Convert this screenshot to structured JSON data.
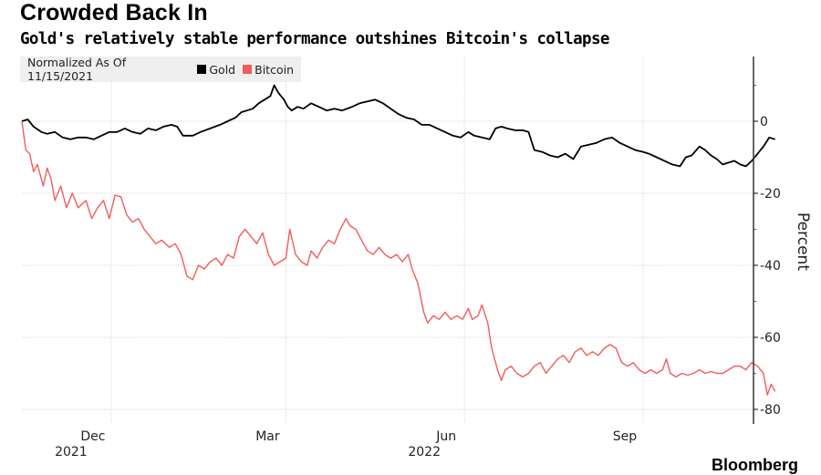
{
  "header": {
    "title": "Crowded Back In",
    "subtitle": "Gold's relatively stable performance outshines Bitcoin's collapse"
  },
  "legend": {
    "note": "Normalized As Of 11/15/2021",
    "items": [
      {
        "label": "Gold",
        "color": "#000000"
      },
      {
        "label": "Bitcoin",
        "color": "#f25c5c"
      }
    ]
  },
  "footer": {
    "brand": "Bloomberg"
  },
  "chart_data": {
    "type": "line",
    "title": "Crowded Back In",
    "subtitle": "Gold's relatively stable performance outshines Bitcoin's collapse",
    "xlabel": "",
    "ylabel": "Percent",
    "ylim": [
      -83,
      18
    ],
    "y_ticks": [
      0,
      -20,
      -40,
      -60,
      -80
    ],
    "y_minor_ticks": [
      10,
      -10,
      -30,
      -50,
      -70
    ],
    "x_ticks": [
      {
        "date": "2021-12-01",
        "label": "Dec",
        "sublabel": "2021"
      },
      {
        "date": "2022-03-01",
        "label": "Mar",
        "sublabel": ""
      },
      {
        "date": "2022-06-01",
        "label": "Jun",
        "sublabel": "2022"
      },
      {
        "date": "2022-09-01",
        "label": "Sep",
        "sublabel": ""
      }
    ],
    "xlim": [
      "2021-10-16",
      "2022-10-26"
    ],
    "grid": true,
    "legend": "top-left",
    "y_axis_side": "right",
    "series": [
      {
        "name": "Gold",
        "color": "#000000",
        "points": [
          [
            "2021-10-16",
            0
          ],
          [
            "2021-10-19",
            0.5
          ],
          [
            "2021-10-22",
            -1.5
          ],
          [
            "2021-10-26",
            -3
          ],
          [
            "2021-10-29",
            -3.5
          ],
          [
            "2021-11-02",
            -3
          ],
          [
            "2021-11-06",
            -4.5
          ],
          [
            "2021-11-10",
            -5
          ],
          [
            "2021-11-14",
            -4.5
          ],
          [
            "2021-11-18",
            -4.5
          ],
          [
            "2021-11-22",
            -5
          ],
          [
            "2021-11-26",
            -4
          ],
          [
            "2021-11-30",
            -3
          ],
          [
            "2021-12-04",
            -3
          ],
          [
            "2021-12-08",
            -2
          ],
          [
            "2021-12-12",
            -3
          ],
          [
            "2021-12-16",
            -3.5
          ],
          [
            "2021-12-20",
            -2
          ],
          [
            "2021-12-24",
            -2.5
          ],
          [
            "2021-12-28",
            -1.5
          ],
          [
            "2022-01-01",
            -1
          ],
          [
            "2022-01-04",
            -1.5
          ],
          [
            "2022-01-07",
            -4
          ],
          [
            "2022-01-12",
            -4
          ],
          [
            "2022-01-16",
            -3
          ],
          [
            "2022-01-21",
            -2
          ],
          [
            "2022-01-26",
            -1
          ],
          [
            "2022-01-30",
            0
          ],
          [
            "2022-02-03",
            1
          ],
          [
            "2022-02-06",
            2.5
          ],
          [
            "2022-02-09",
            3
          ],
          [
            "2022-02-12",
            3.5
          ],
          [
            "2022-02-15",
            5
          ],
          [
            "2022-02-18",
            6
          ],
          [
            "2022-02-21",
            7
          ],
          [
            "2022-02-23",
            10
          ],
          [
            "2022-02-25",
            8
          ],
          [
            "2022-02-28",
            6
          ],
          [
            "2022-03-02",
            4
          ],
          [
            "2022-03-04",
            3
          ],
          [
            "2022-03-07",
            4
          ],
          [
            "2022-03-10",
            3.5
          ],
          [
            "2022-03-14",
            5
          ],
          [
            "2022-03-18",
            4
          ],
          [
            "2022-03-22",
            3
          ],
          [
            "2022-03-26",
            3.5
          ],
          [
            "2022-03-30",
            3
          ],
          [
            "2022-04-04",
            4
          ],
          [
            "2022-04-08",
            5
          ],
          [
            "2022-04-12",
            5.5
          ],
          [
            "2022-04-16",
            6
          ],
          [
            "2022-04-20",
            5
          ],
          [
            "2022-04-24",
            3.5
          ],
          [
            "2022-04-28",
            2
          ],
          [
            "2022-05-02",
            1
          ],
          [
            "2022-05-06",
            0.5
          ],
          [
            "2022-05-10",
            -1
          ],
          [
            "2022-05-14",
            -1
          ],
          [
            "2022-05-18",
            -2
          ],
          [
            "2022-05-22",
            -3
          ],
          [
            "2022-05-26",
            -4
          ],
          [
            "2022-05-30",
            -4.5
          ],
          [
            "2022-06-03",
            -3
          ],
          [
            "2022-06-06",
            -4
          ],
          [
            "2022-06-10",
            -4.5
          ],
          [
            "2022-06-14",
            -5
          ],
          [
            "2022-06-17",
            -2
          ],
          [
            "2022-06-20",
            -1.5
          ],
          [
            "2022-06-23",
            -2
          ],
          [
            "2022-06-27",
            -2.5
          ],
          [
            "2022-07-01",
            -2.5
          ],
          [
            "2022-07-04",
            -3
          ],
          [
            "2022-07-07",
            -8
          ],
          [
            "2022-07-11",
            -8.5
          ],
          [
            "2022-07-15",
            -9.5
          ],
          [
            "2022-07-19",
            -10
          ],
          [
            "2022-07-23",
            -9
          ],
          [
            "2022-07-27",
            -10.5
          ],
          [
            "2022-07-31",
            -7
          ],
          [
            "2022-08-04",
            -6.5
          ],
          [
            "2022-08-08",
            -6
          ],
          [
            "2022-08-12",
            -5
          ],
          [
            "2022-08-16",
            -4.5
          ],
          [
            "2022-08-20",
            -6
          ],
          [
            "2022-08-24",
            -7
          ],
          [
            "2022-08-28",
            -8
          ],
          [
            "2022-09-01",
            -8.5
          ],
          [
            "2022-09-04",
            -9
          ],
          [
            "2022-09-08",
            -10
          ],
          [
            "2022-09-12",
            -11
          ],
          [
            "2022-09-16",
            -12
          ],
          [
            "2022-09-20",
            -12.5
          ],
          [
            "2022-09-23",
            -10
          ],
          [
            "2022-09-26",
            -9.5
          ],
          [
            "2022-09-30",
            -7
          ],
          [
            "2022-10-03",
            -8
          ],
          [
            "2022-10-06",
            -9.5
          ],
          [
            "2022-10-09",
            -10.5
          ],
          [
            "2022-10-12",
            -12
          ],
          [
            "2022-10-15",
            -11.5
          ],
          [
            "2022-10-18",
            -11
          ],
          [
            "2022-10-21",
            -12
          ],
          [
            "2022-10-24",
            -12.5
          ],
          [
            "2022-10-27",
            -11
          ],
          [
            "2022-10-30",
            -9
          ],
          [
            "2022-11-02",
            -7
          ],
          [
            "2022-11-05",
            -4.5
          ],
          [
            "2022-11-08",
            -5
          ]
        ]
      },
      {
        "name": "Bitcoin",
        "color": "#f25c5c",
        "points": [
          [
            "2021-10-16",
            0
          ],
          [
            "2021-10-18",
            -8
          ],
          [
            "2021-10-20",
            -9
          ],
          [
            "2021-10-22",
            -14
          ],
          [
            "2021-10-24",
            -12
          ],
          [
            "2021-10-27",
            -18
          ],
          [
            "2021-10-29",
            -13
          ],
          [
            "2021-10-31",
            -16
          ],
          [
            "2021-11-02",
            -22
          ],
          [
            "2021-11-05",
            -18
          ],
          [
            "2021-11-08",
            -24
          ],
          [
            "2021-11-11",
            -20
          ],
          [
            "2021-11-14",
            -24
          ],
          [
            "2021-11-18",
            -22
          ],
          [
            "2021-11-21",
            -27
          ],
          [
            "2021-11-24",
            -24
          ],
          [
            "2021-11-27",
            -22
          ],
          [
            "2021-11-30",
            -27
          ],
          [
            "2021-12-03",
            -20.5
          ],
          [
            "2021-12-06",
            -21
          ],
          [
            "2021-12-09",
            -26
          ],
          [
            "2021-12-12",
            -28
          ],
          [
            "2021-12-15",
            -27
          ],
          [
            "2021-12-18",
            -30
          ],
          [
            "2021-12-21",
            -32
          ],
          [
            "2021-12-24",
            -34
          ],
          [
            "2021-12-27",
            -33
          ],
          [
            "2021-12-31",
            -35
          ],
          [
            "2022-01-03",
            -34
          ],
          [
            "2022-01-06",
            -37
          ],
          [
            "2022-01-09",
            -43
          ],
          [
            "2022-01-12",
            -44
          ],
          [
            "2022-01-15",
            -40
          ],
          [
            "2022-01-18",
            -41
          ],
          [
            "2022-01-21",
            -39
          ],
          [
            "2022-01-24",
            -38
          ],
          [
            "2022-01-27",
            -40
          ],
          [
            "2022-01-30",
            -37
          ],
          [
            "2022-02-02",
            -38
          ],
          [
            "2022-02-05",
            -32
          ],
          [
            "2022-02-08",
            -30
          ],
          [
            "2022-02-11",
            -32
          ],
          [
            "2022-02-14",
            -34
          ],
          [
            "2022-02-17",
            -31
          ],
          [
            "2022-02-20",
            -37
          ],
          [
            "2022-02-23",
            -40
          ],
          [
            "2022-02-26",
            -39
          ],
          [
            "2022-03-01",
            -38
          ],
          [
            "2022-03-03",
            -30
          ],
          [
            "2022-03-06",
            -37
          ],
          [
            "2022-03-09",
            -39
          ],
          [
            "2022-03-12",
            -40
          ],
          [
            "2022-03-14",
            -36
          ],
          [
            "2022-03-17",
            -38
          ],
          [
            "2022-03-20",
            -35
          ],
          [
            "2022-03-23",
            -33
          ],
          [
            "2022-03-26",
            -34
          ],
          [
            "2022-03-29",
            -30
          ],
          [
            "2022-04-01",
            -27
          ],
          [
            "2022-04-03",
            -29
          ],
          [
            "2022-04-06",
            -30
          ],
          [
            "2022-04-09",
            -33
          ],
          [
            "2022-04-12",
            -36
          ],
          [
            "2022-04-15",
            -37
          ],
          [
            "2022-04-18",
            -35
          ],
          [
            "2022-04-21",
            -37
          ],
          [
            "2022-04-24",
            -38
          ],
          [
            "2022-04-27",
            -37
          ],
          [
            "2022-04-30",
            -39
          ],
          [
            "2022-05-03",
            -37
          ],
          [
            "2022-05-05",
            -41
          ],
          [
            "2022-05-08",
            -45
          ],
          [
            "2022-05-11",
            -53
          ],
          [
            "2022-05-13",
            -56
          ],
          [
            "2022-05-16",
            -54
          ],
          [
            "2022-05-19",
            -55
          ],
          [
            "2022-05-22",
            -53
          ],
          [
            "2022-05-25",
            -55
          ],
          [
            "2022-05-28",
            -54
          ],
          [
            "2022-05-31",
            -55
          ],
          [
            "2022-06-03",
            -52
          ],
          [
            "2022-06-05",
            -55
          ],
          [
            "2022-06-08",
            -54
          ],
          [
            "2022-06-10",
            -51
          ],
          [
            "2022-06-13",
            -56
          ],
          [
            "2022-06-15",
            -63
          ],
          [
            "2022-06-18",
            -69
          ],
          [
            "2022-06-20",
            -72
          ],
          [
            "2022-06-22",
            -69
          ],
          [
            "2022-06-25",
            -68
          ],
          [
            "2022-06-28",
            -70
          ],
          [
            "2022-07-01",
            -71
          ],
          [
            "2022-07-04",
            -70
          ],
          [
            "2022-07-07",
            -68
          ],
          [
            "2022-07-10",
            -67
          ],
          [
            "2022-07-13",
            -70
          ],
          [
            "2022-07-16",
            -68
          ],
          [
            "2022-07-19",
            -66
          ],
          [
            "2022-07-22",
            -65
          ],
          [
            "2022-07-25",
            -67
          ],
          [
            "2022-07-28",
            -64
          ],
          [
            "2022-07-31",
            -63
          ],
          [
            "2022-08-03",
            -65
          ],
          [
            "2022-08-06",
            -64
          ],
          [
            "2022-08-09",
            -65
          ],
          [
            "2022-08-12",
            -63
          ],
          [
            "2022-08-15",
            -62
          ],
          [
            "2022-08-18",
            -63
          ],
          [
            "2022-08-21",
            -67
          ],
          [
            "2022-08-24",
            -68
          ],
          [
            "2022-08-27",
            -67
          ],
          [
            "2022-08-30",
            -69
          ],
          [
            "2022-09-02",
            -70
          ],
          [
            "2022-09-05",
            -69
          ],
          [
            "2022-09-08",
            -70
          ],
          [
            "2022-09-11",
            -69
          ],
          [
            "2022-09-13",
            -66
          ],
          [
            "2022-09-15",
            -70
          ],
          [
            "2022-09-18",
            -71
          ],
          [
            "2022-09-21",
            -70
          ],
          [
            "2022-09-24",
            -70.5
          ],
          [
            "2022-09-27",
            -70
          ],
          [
            "2022-09-30",
            -69
          ],
          [
            "2022-10-03",
            -70
          ],
          [
            "2022-10-06",
            -69.5
          ],
          [
            "2022-10-09",
            -70
          ],
          [
            "2022-10-12",
            -70
          ],
          [
            "2022-10-15",
            -69
          ],
          [
            "2022-10-18",
            -68
          ],
          [
            "2022-10-21",
            -68
          ],
          [
            "2022-10-24",
            -69
          ],
          [
            "2022-10-27",
            -67
          ],
          [
            "2022-10-30",
            -68
          ],
          [
            "2022-11-02",
            -70
          ],
          [
            "2022-11-04",
            -76
          ],
          [
            "2022-11-06",
            -73
          ],
          [
            "2022-11-08",
            -75
          ]
        ]
      }
    ]
  }
}
